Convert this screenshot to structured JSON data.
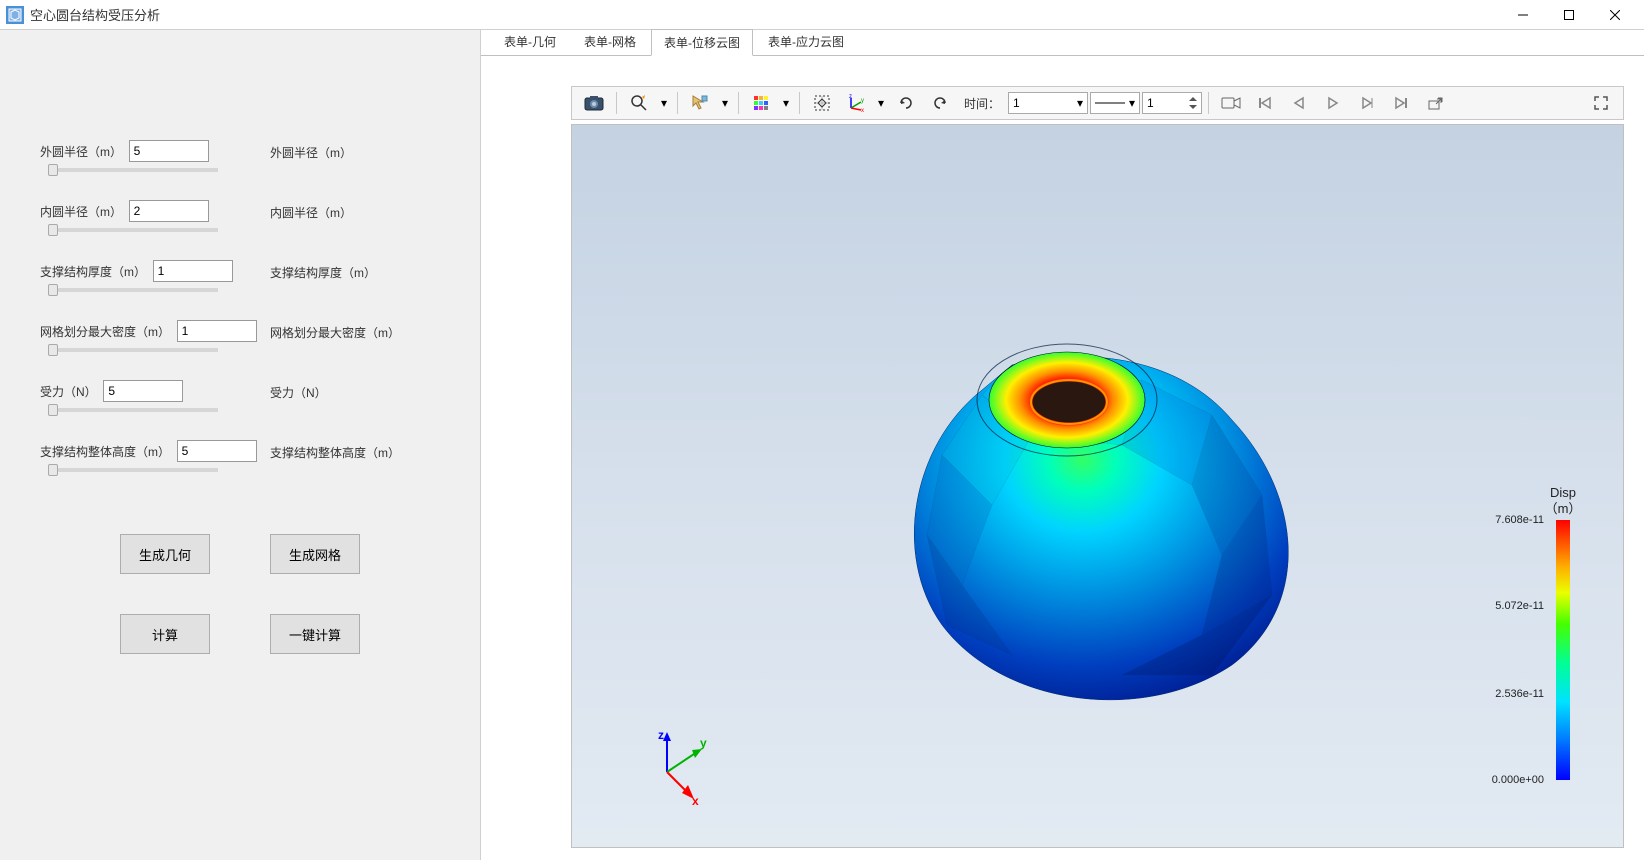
{
  "window": {
    "title": "空心圆台结构受压分析",
    "icon_color": "#4a90d9"
  },
  "sidebar": {
    "params": [
      {
        "label": "外圆半径（m）",
        "value": "5",
        "echo": "外圆半径（m）"
      },
      {
        "label": "内圆半径（m）",
        "value": "2",
        "echo": "内圆半径（m）"
      },
      {
        "label": "支撑结构厚度（m）",
        "value": "1",
        "echo": "支撑结构厚度（m）"
      },
      {
        "label": "网格划分最大密度（m）",
        "value": "1",
        "echo": "网格划分最大密度（m）"
      },
      {
        "label": "受力（N）",
        "value": "5",
        "echo": "受力（N）"
      },
      {
        "label": "支撑结构整体高度（m）",
        "value": "5",
        "echo": "支撑结构整体高度（m）"
      }
    ],
    "buttons": {
      "gen_geom": "生成几何",
      "gen_mesh": "生成网格",
      "compute": "计算",
      "one_click": "一键计算"
    }
  },
  "tabs": {
    "items": [
      {
        "label": "表单-几何",
        "active": false
      },
      {
        "label": "表单-网格",
        "active": false
      },
      {
        "label": "表单-位移云图",
        "active": true
      },
      {
        "label": "表单-应力云图",
        "active": false
      }
    ]
  },
  "toolbar": {
    "time_label": "时间：",
    "time_value": "1",
    "spin_value": "1"
  },
  "legend": {
    "title_line1": "Disp",
    "title_line2": "（m）",
    "ticks": [
      {
        "label": "7.608e-11",
        "pos_pct": 0
      },
      {
        "label": "5.072e-11",
        "pos_pct": 33
      },
      {
        "label": "2.536e-11",
        "pos_pct": 67
      },
      {
        "label": "0.000e+00",
        "pos_pct": 100
      }
    ],
    "gradient_colors": [
      "#ff0000",
      "#ffae00",
      "#eaff00",
      "#45ff00",
      "#00ff94",
      "#00e2ff",
      "#0077ff",
      "#0000ff"
    ]
  },
  "triad": {
    "x_color": "#ff0000",
    "y_color": "#00b300",
    "z_color": "#0000ff"
  },
  "viewport": {
    "background_gradient": [
      "#c4d2e2",
      "#e2eaf2"
    ]
  }
}
